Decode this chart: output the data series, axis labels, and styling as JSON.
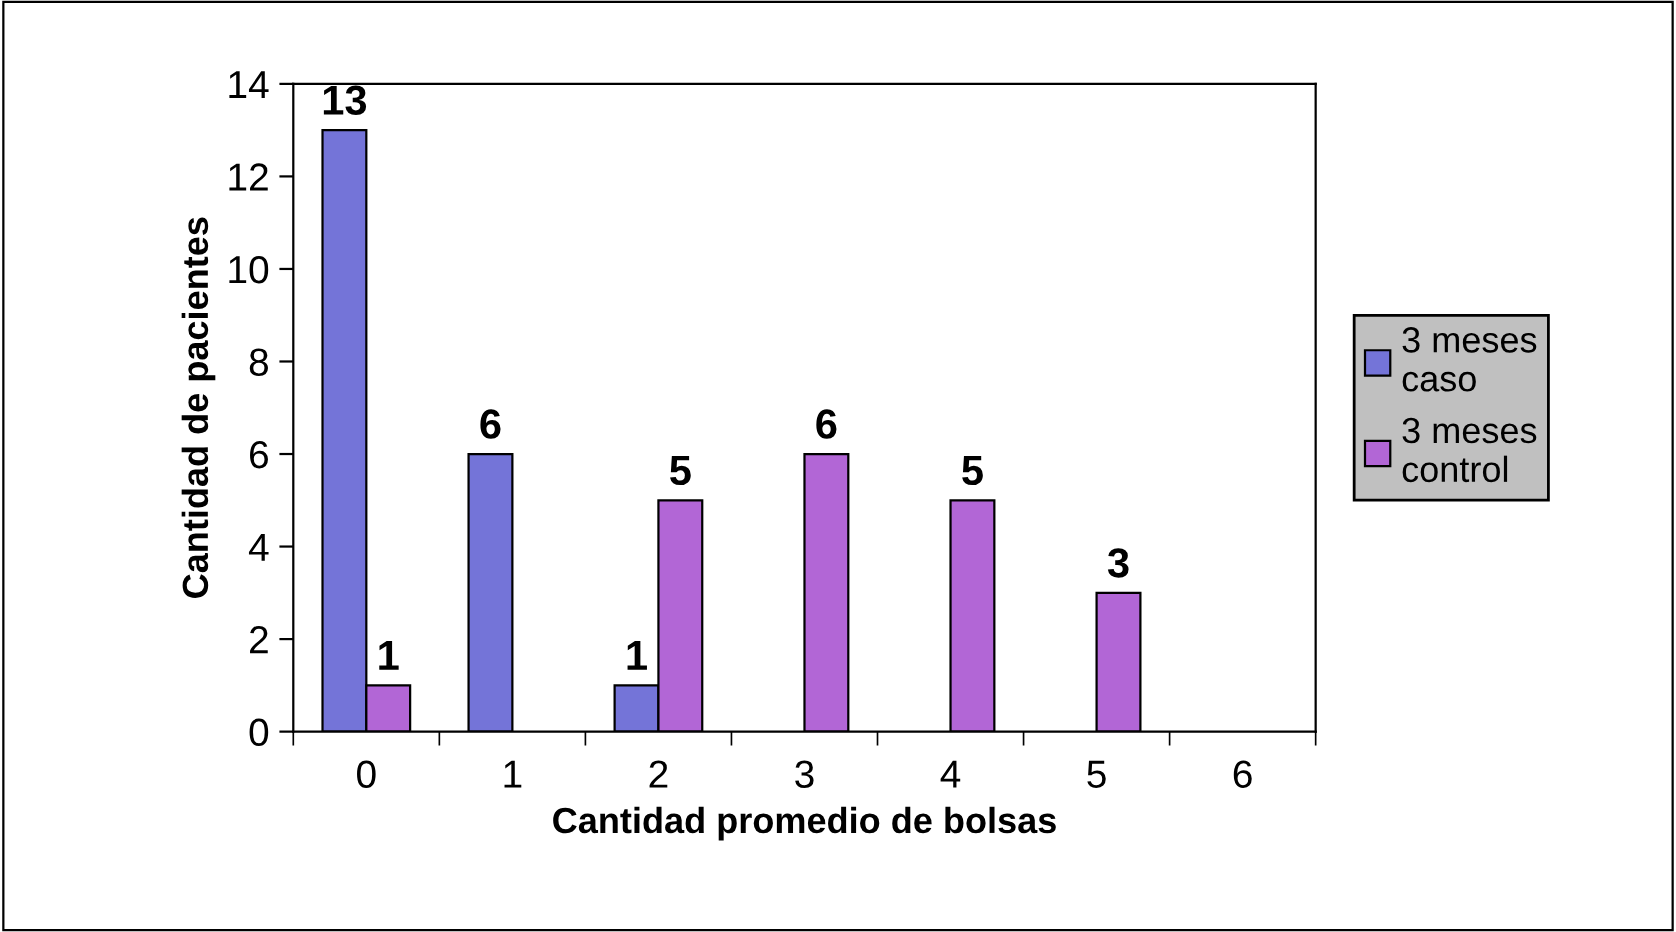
{
  "chart_data": {
    "type": "bar",
    "xlabel": "Cantidad promedio de bolsas",
    "ylabel": "Cantidad de pacientes",
    "categories": [
      "0",
      "1",
      "2",
      "3",
      "4",
      "5",
      "6"
    ],
    "series": [
      {
        "name": "3 meses caso",
        "color": "#7474d8",
        "values": [
          13,
          6,
          1,
          null,
          null,
          null,
          null
        ]
      },
      {
        "name": "3 meses control",
        "color": "#b266d6",
        "values": [
          1,
          null,
          5,
          6,
          5,
          3,
          null
        ]
      }
    ],
    "ylim": [
      0,
      14
    ],
    "yticks": [
      0,
      2,
      4,
      6,
      8,
      10,
      12,
      14
    ],
    "grid": false,
    "legend": "right",
    "data_labels": true
  }
}
